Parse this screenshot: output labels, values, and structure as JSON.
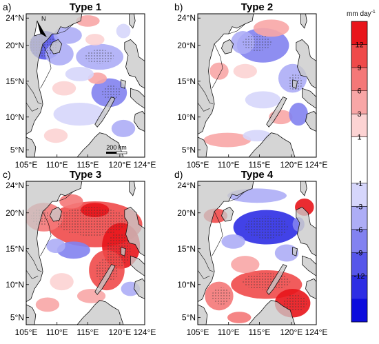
{
  "figure": {
    "panels": [
      {
        "id": "a",
        "letter": "a)",
        "title": "Type 1",
        "pattern": "t1"
      },
      {
        "id": "b",
        "letter": "b)",
        "title": "Type 2",
        "pattern": "t2"
      },
      {
        "id": "c",
        "letter": "c)",
        "title": "Type 3",
        "pattern": "t3"
      },
      {
        "id": "d",
        "letter": "d)",
        "title": "Type 4",
        "pattern": "t4"
      }
    ],
    "lat_ticks": [
      "24°N",
      "20°N",
      "15°N",
      "10°N",
      "5°N"
    ],
    "lon_ticks": [
      "105°E",
      "110°E",
      "115°E",
      "120°E",
      "124°E"
    ],
    "north_arrow_label": "N",
    "scale_bar_label": "200 km",
    "colorbar": {
      "unit": "mm day",
      "unit_exp": "-1",
      "labels": [
        "12",
        "9",
        "6",
        "3",
        "1",
        "-1",
        "-3",
        "-6",
        "-9",
        "-12"
      ],
      "colors": [
        "#e8151b",
        "#ef4a4a",
        "#f47878",
        "#f8a6a6",
        "#fcd3d3",
        "#ffffff",
        "#ffffff",
        "#d6d6fb",
        "#adadf6",
        "#8282f0",
        "#5656ea",
        "#2d2de4",
        "#0d0ddd"
      ]
    },
    "colors": {
      "land": "#c9c9c9",
      "coast": "#111111"
    }
  }
}
